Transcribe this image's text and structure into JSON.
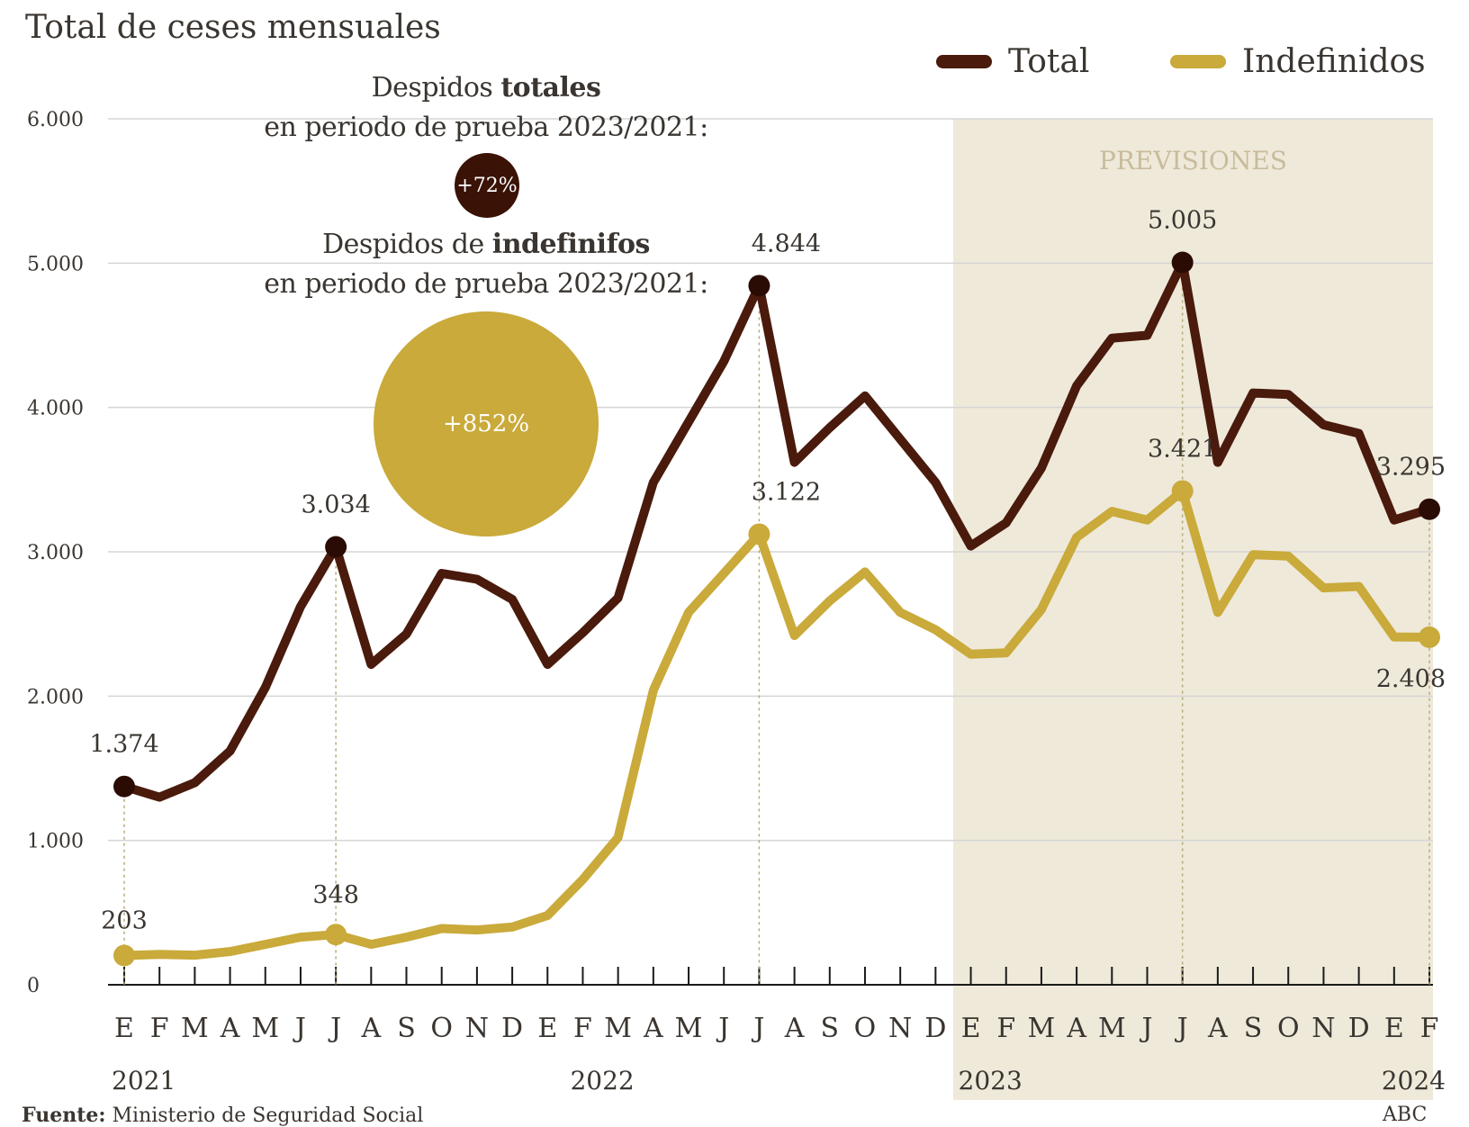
{
  "title": "Total de ceses mensuales",
  "legend": {
    "total": "Total",
    "indefinidos": "Indefinidos"
  },
  "colors": {
    "total": "#4a1a0c",
    "indefinidos": "#c9aa3a",
    "forecast_band": "#efe9da",
    "forecast_text": "#c8bc9c",
    "grid": "#d5d5d5"
  },
  "annotations": {
    "totales_line1_pre": "Despidos ",
    "totales_line1_bold": "totales",
    "totales_line2": "en periodo de prueba 2023/2021:",
    "totales_badge": "+72%",
    "indef_line1_pre": "Despidos de ",
    "indef_line1_bold": "indefinifos",
    "indef_line2": "en periodo de prueba 2023/2021:",
    "indef_badge": "+852%"
  },
  "footer": {
    "source_label": "Fuente:",
    "source_text": "Ministerio de Seguridad Social",
    "credit": "ABC"
  },
  "chart_data": {
    "type": "line",
    "title": "Total de ceses mensuales",
    "y_ticks": [
      "0",
      "1.000",
      "2.000",
      "3.000",
      "4.000",
      "5.000",
      "6.000"
    ],
    "ylim": [
      0,
      6000
    ],
    "grid": true,
    "legend_position": "top-right",
    "forecast_label": "PREVISIONES",
    "forecast_start_index": 24,
    "month_labels": [
      "E",
      "F",
      "M",
      "A",
      "M",
      "J",
      "J",
      "A",
      "S",
      "O",
      "N",
      "D",
      "E",
      "F",
      "M",
      "A",
      "M",
      "J",
      "J",
      "A",
      "S",
      "O",
      "N",
      "D",
      "E",
      "F",
      "M",
      "A",
      "M",
      "J",
      "J",
      "A",
      "S",
      "O",
      "N",
      "D",
      "E",
      "F"
    ],
    "year_labels": [
      {
        "text": "2021",
        "index": 0
      },
      {
        "text": "2022",
        "index": 13
      },
      {
        "text": "2023",
        "index": 24
      },
      {
        "text": "2024",
        "index": 37
      }
    ],
    "series": [
      {
        "name": "Total",
        "values": [
          1374,
          1300,
          1400,
          1620,
          2060,
          2620,
          3034,
          2220,
          2430,
          2850,
          2810,
          2670,
          2220,
          2440,
          2680,
          3480,
          3900,
          4320,
          4844,
          3620,
          3860,
          4080,
          3780,
          3480,
          3040,
          3200,
          3580,
          4150,
          4480,
          4500,
          5005,
          3620,
          4100,
          4090,
          3880,
          3820,
          3220,
          3295
        ],
        "labeled_points": [
          {
            "index": 0,
            "label": "1.374"
          },
          {
            "index": 6,
            "label": "3.034"
          },
          {
            "index": 18,
            "label": "4.844"
          },
          {
            "index": 30,
            "label": "5.005"
          },
          {
            "index": 37,
            "label": "3.295"
          }
        ]
      },
      {
        "name": "Indefinidos",
        "values": [
          203,
          210,
          205,
          230,
          280,
          330,
          348,
          280,
          330,
          390,
          380,
          400,
          480,
          730,
          1020,
          2040,
          2580,
          2850,
          3122,
          2420,
          2660,
          2860,
          2580,
          2460,
          2290,
          2300,
          2600,
          3100,
          3280,
          3220,
          3421,
          2580,
          2980,
          2970,
          2750,
          2760,
          2410,
          2408
        ],
        "labeled_points": [
          {
            "index": 0,
            "label": "203"
          },
          {
            "index": 6,
            "label": "348"
          },
          {
            "index": 18,
            "label": "3.122"
          },
          {
            "index": 30,
            "label": "3.421"
          },
          {
            "index": 37,
            "label": "2.408"
          }
        ]
      }
    ]
  }
}
